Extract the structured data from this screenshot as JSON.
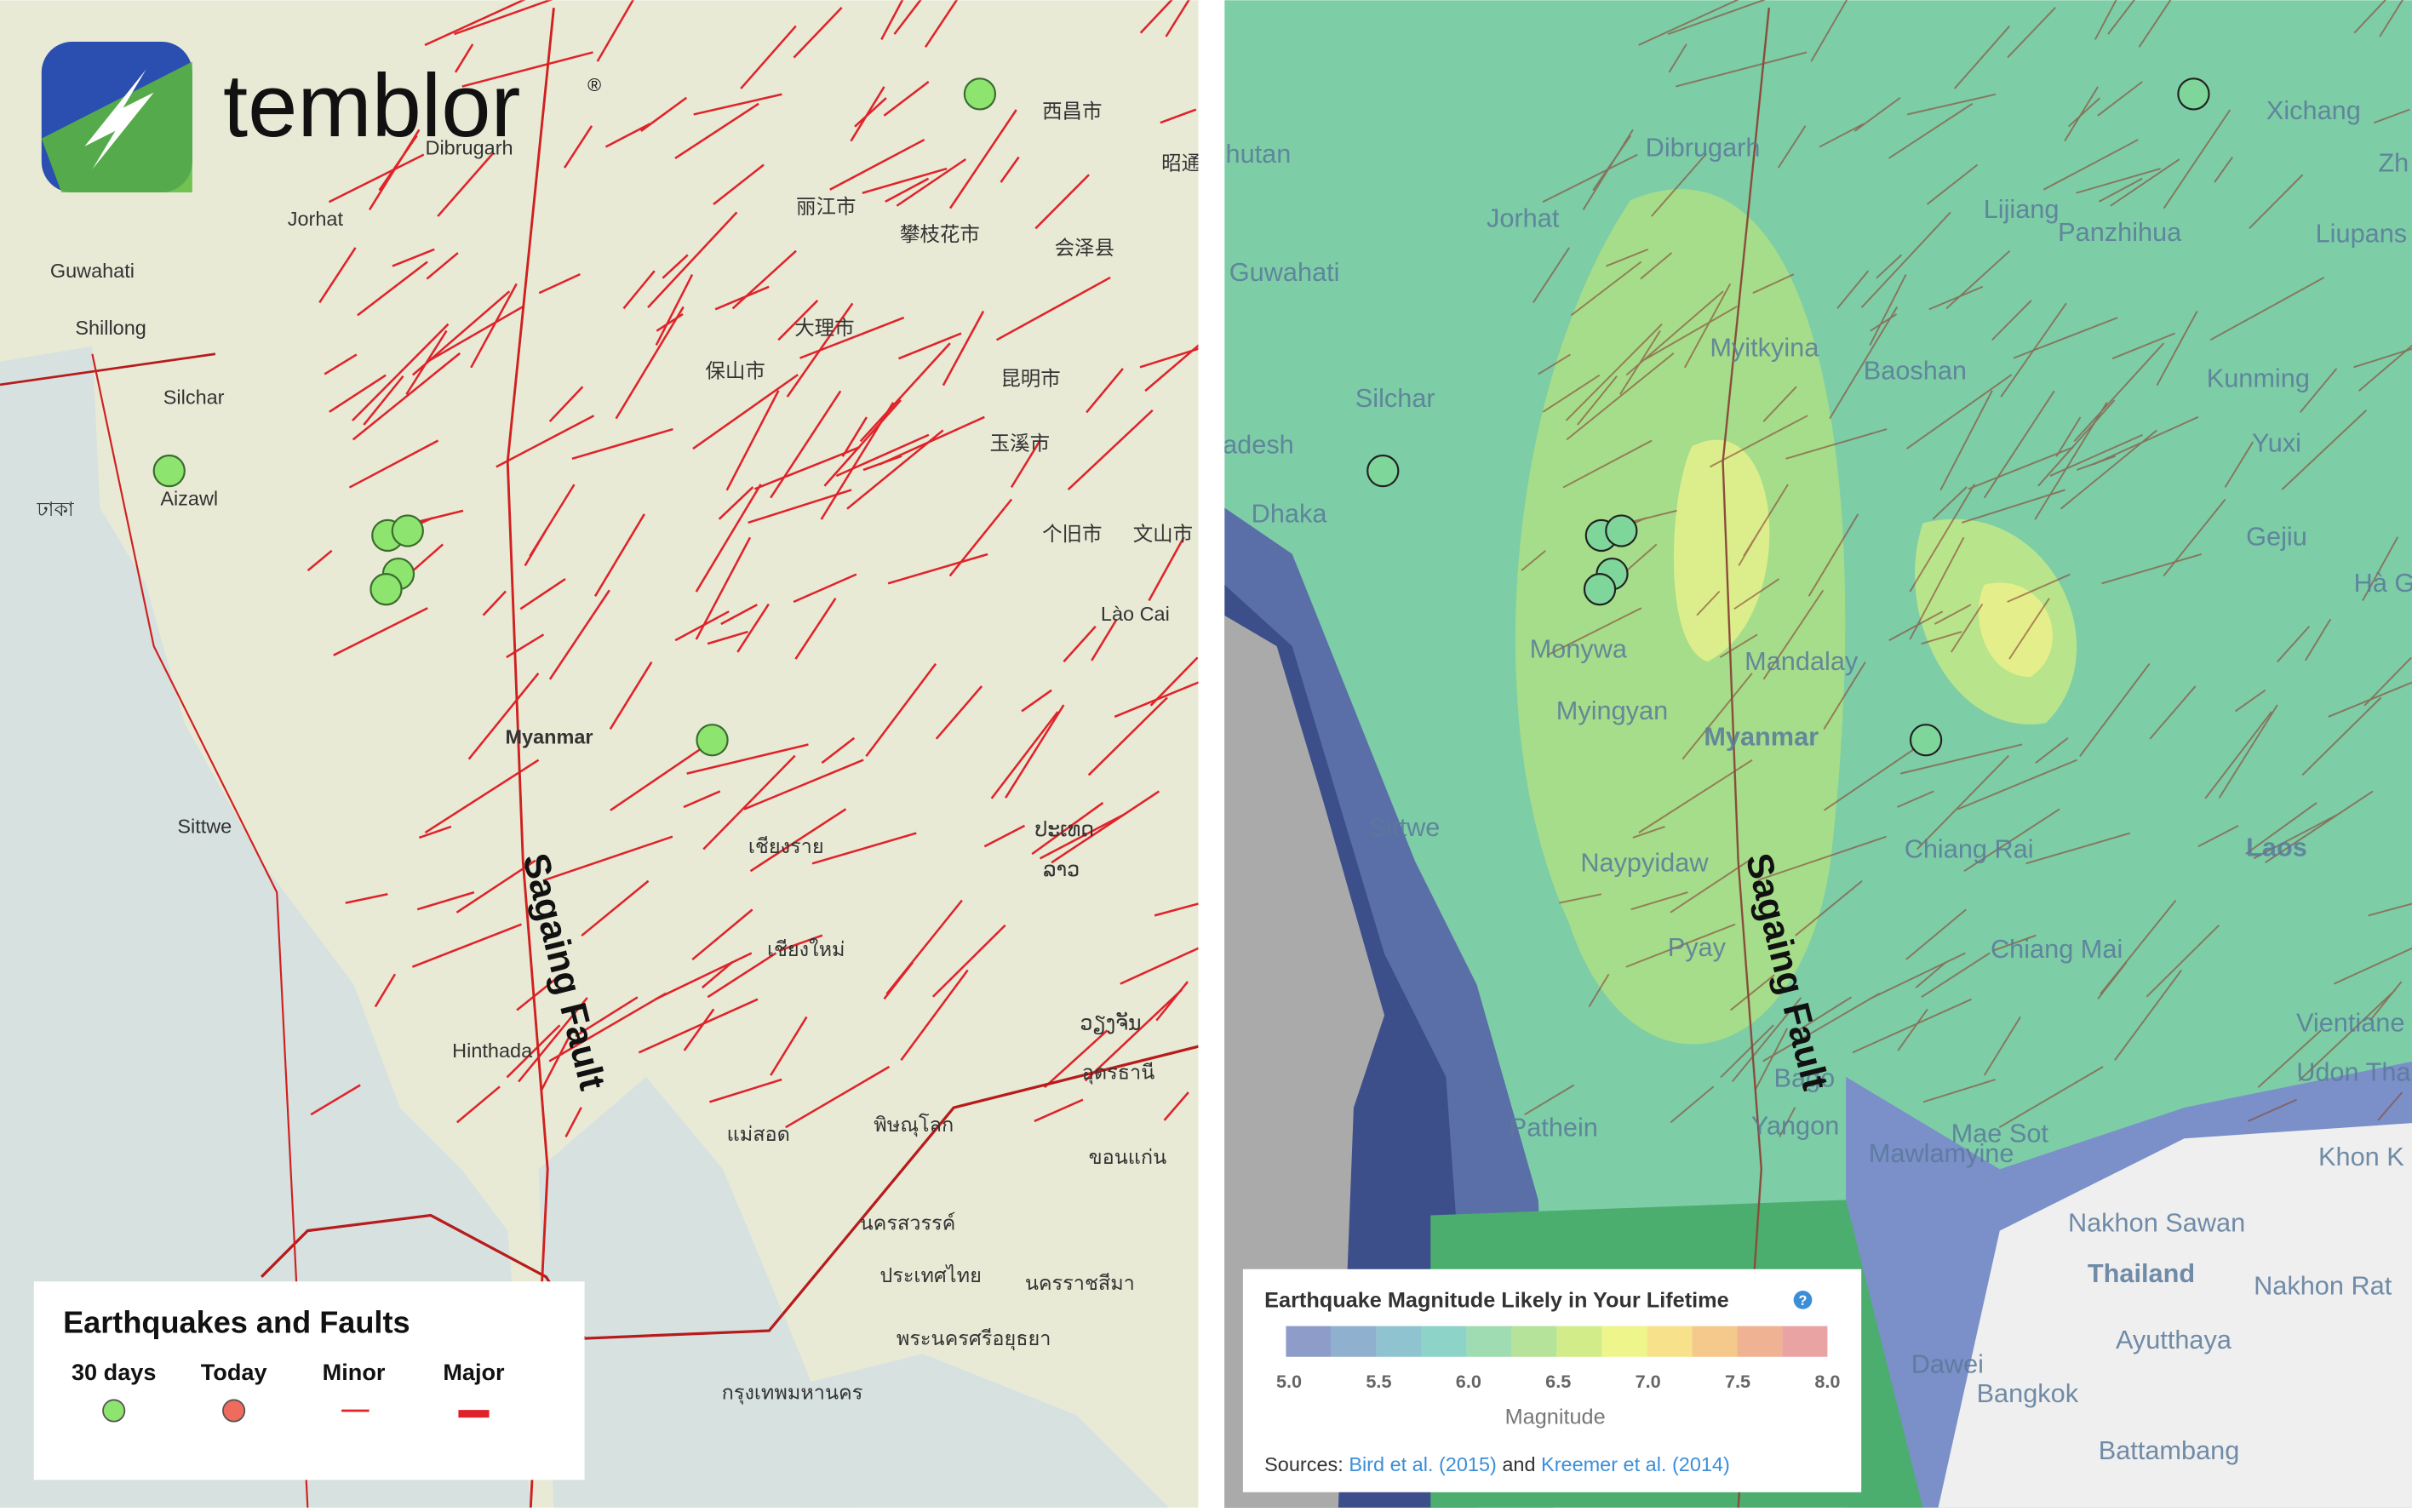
{
  "logo": {
    "name": "temblor",
    "mark": "®"
  },
  "left_map": {
    "places": [
      "Dibrugarh",
      "Jorhat",
      "Guwahati",
      "Shillong",
      "Silchar",
      "Aizawl",
      "ঢাকা",
      "Myanmar",
      "Sittwe",
      "Hinthada",
      "西昌市",
      "丽江市",
      "攀枝花市",
      "会泽县",
      "大理市",
      "保山市",
      "昆明市",
      "玉溪市",
      "个旧市",
      "文山市",
      "Lào Cai",
      "เชียงราย",
      "เชียงใหม่",
      "ປະເທດ",
      "ລາວ",
      "ວຽງຈັນ",
      "อุดรธานี",
      "ขอนแก่น",
      "แม่สอด",
      "พิษณุโลก",
      "นครสวรรค์",
      "ประเทศไทย",
      "นครราชสีมา",
      "พระนครศรีอยุธยา",
      "กรุงเทพมหานคร",
      "昭通"
    ],
    "fault_label": "Sagaing Fault"
  },
  "left_legend": {
    "title": "Earthquakes and Faults",
    "items": [
      "30 days",
      "Today",
      "Minor",
      "Major"
    ]
  },
  "right_map": {
    "places": [
      "Dibrugarh",
      "Jorhat",
      "Guwahati",
      "Silchar",
      "Dhaka",
      "adesh",
      "hutan",
      "Myitkyina",
      "Baoshan",
      "Lijiang",
      "Panzhihua",
      "Xichang",
      "Liupans",
      "Kunming",
      "Yuxi",
      "Gejiu",
      "Hà G",
      "Monywa",
      "Mandalay",
      "Myingyan",
      "Myanmar",
      "Sittwe",
      "Naypyidaw",
      "Chiang Rai",
      "Laos",
      "Pyay",
      "Chiang Mai",
      "Vientiane",
      "Udon Tha",
      "Bago",
      "Yangon",
      "Pathein",
      "Mae Sot",
      "Mawlamyine",
      "Khon K",
      "Nakhon Sawan",
      "Thailand",
      "Nakhon Rat",
      "Ayutthaya",
      "Dawei",
      "Bangkok",
      "Battambang",
      "Zh"
    ],
    "fault_label": "Sagaing Fault"
  },
  "right_legend": {
    "title": "Earthquake Magnitude Likely in Your Lifetime",
    "help": "?",
    "scale": [
      "5.0",
      "5.5",
      "6.0",
      "6.5",
      "7.0",
      "7.5",
      "8.0"
    ],
    "axis_label": "Magnitude",
    "sources": {
      "prefix": "Sources:",
      "link1": "Bird et al. (2015)",
      "join": "and",
      "link2": "Kreemer et al. (2014)"
    }
  }
}
